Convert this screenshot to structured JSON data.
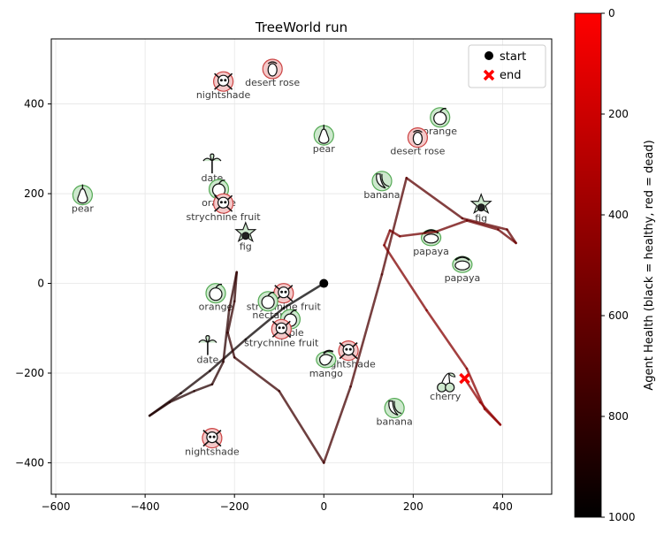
{
  "chart_data": {
    "type": "line",
    "title": "TreeWorld run",
    "xlim": [
      -610,
      510
    ],
    "ylim": [
      -470,
      545
    ],
    "x_ticks": [
      -600,
      -400,
      -200,
      0,
      200,
      400
    ],
    "y_ticks": [
      -400,
      -200,
      0,
      200,
      400
    ],
    "x_tick_labels": [
      "−600",
      "−400",
      "−200",
      "0",
      "200",
      "400"
    ],
    "y_tick_labels": [
      "−400",
      "−200",
      "0",
      "200",
      "400"
    ],
    "grid": true,
    "legend": {
      "placement": "upper right",
      "entries": [
        {
          "label": "start",
          "marker": "circle",
          "color": "#000000"
        },
        {
          "label": "end",
          "marker": "x",
          "color": "#ff0000"
        }
      ]
    },
    "colorbar": {
      "label": "Agent Health (black = healthy, red = dead)",
      "ticks": [
        0,
        200,
        400,
        600,
        800,
        1000
      ],
      "tick_labels": [
        "0",
        "200",
        "400",
        "600",
        "800",
        "1000"
      ],
      "range": [
        0,
        1000
      ],
      "low_color": "#ff0000",
      "high_color": "#000000"
    },
    "start": {
      "x": 0,
      "y": 0
    },
    "end": {
      "x": 315,
      "y": -212
    },
    "trajectory": [
      {
        "x": 0,
        "y": 0,
        "health": 1000
      },
      {
        "x": -90,
        "y": -55,
        "health": 985
      },
      {
        "x": -175,
        "y": -125,
        "health": 960
      },
      {
        "x": -255,
        "y": -195,
        "health": 935
      },
      {
        "x": -320,
        "y": -245,
        "health": 910
      },
      {
        "x": -390,
        "y": -295,
        "health": 890
      },
      {
        "x": -345,
        "y": -265,
        "health": 875
      },
      {
        "x": -290,
        "y": -240,
        "health": 862
      },
      {
        "x": -250,
        "y": -225,
        "health": 850
      },
      {
        "x": -225,
        "y": -175,
        "health": 838
      },
      {
        "x": -212,
        "y": -60,
        "health": 826
      },
      {
        "x": -195,
        "y": 25,
        "health": 815
      },
      {
        "x": -200,
        "y": -40,
        "health": 805
      },
      {
        "x": -215,
        "y": -110,
        "health": 795
      },
      {
        "x": -200,
        "y": -165,
        "health": 785
      },
      {
        "x": -100,
        "y": -240,
        "health": 770
      },
      {
        "x": 0,
        "y": -400,
        "health": 745
      },
      {
        "x": 60,
        "y": -230,
        "health": 720
      },
      {
        "x": 130,
        "y": 20,
        "health": 690
      },
      {
        "x": 185,
        "y": 235,
        "health": 660
      },
      {
        "x": 310,
        "y": 145,
        "health": 630
      },
      {
        "x": 410,
        "y": 120,
        "health": 610
      },
      {
        "x": 430,
        "y": 90,
        "health": 595
      },
      {
        "x": 390,
        "y": 120,
        "health": 585
      },
      {
        "x": 320,
        "y": 140,
        "health": 575
      },
      {
        "x": 250,
        "y": 115,
        "health": 560
      },
      {
        "x": 170,
        "y": 105,
        "health": 540
      },
      {
        "x": 148,
        "y": 118,
        "health": 525
      },
      {
        "x": 135,
        "y": 85,
        "health": 510
      },
      {
        "x": 230,
        "y": -60,
        "health": 490
      },
      {
        "x": 320,
        "y": -190,
        "health": 470
      },
      {
        "x": 360,
        "y": -280,
        "health": 455
      },
      {
        "x": 395,
        "y": -315,
        "health": 440
      },
      {
        "x": 350,
        "y": -265,
        "health": 430
      },
      {
        "x": 315,
        "y": -212,
        "health": 420
      }
    ],
    "items": [
      {
        "label": "nightshade",
        "x": -225,
        "y": 450,
        "icon": "skull-icon"
      },
      {
        "label": "desert rose",
        "x": -115,
        "y": 478,
        "icon": "desert-rose-icon"
      },
      {
        "label": "pear",
        "x": 0,
        "y": 330,
        "icon": "pear-icon"
      },
      {
        "label": "orange",
        "x": 260,
        "y": 370,
        "icon": "orange-icon"
      },
      {
        "label": "desert rose",
        "x": 210,
        "y": 325,
        "icon": "desert-rose-icon"
      },
      {
        "label": "date",
        "x": -250,
        "y": 265,
        "icon": "palm-icon"
      },
      {
        "label": "orange",
        "x": -235,
        "y": 210,
        "icon": "orange-icon"
      },
      {
        "label": "strychnine fruit",
        "x": -225,
        "y": 178,
        "icon": "skull-icon"
      },
      {
        "label": "pear",
        "x": -540,
        "y": 197,
        "icon": "pear-icon"
      },
      {
        "label": "banana",
        "x": 130,
        "y": 228,
        "icon": "banana-icon"
      },
      {
        "label": "fig",
        "x": 352,
        "y": 175,
        "icon": "fig-icon"
      },
      {
        "label": "fig",
        "x": -175,
        "y": 112,
        "icon": "fig-icon"
      },
      {
        "label": "papaya",
        "x": 240,
        "y": 102,
        "icon": "papaya-icon"
      },
      {
        "label": "papaya",
        "x": 310,
        "y": 42,
        "icon": "papaya-icon"
      },
      {
        "label": "orange",
        "x": -242,
        "y": -22,
        "icon": "orange-icon"
      },
      {
        "label": "strychnine fruit",
        "x": -90,
        "y": -22,
        "icon": "skull-icon"
      },
      {
        "label": "nectar",
        "x": -125,
        "y": -40,
        "icon": "orange-icon"
      },
      {
        "label": "apple",
        "x": -75,
        "y": -80,
        "icon": "apple-icon"
      },
      {
        "label": "strychnine fruit",
        "x": -95,
        "y": -102,
        "icon": "skull-icon"
      },
      {
        "label": "date",
        "x": -260,
        "y": -140,
        "icon": "palm-icon"
      },
      {
        "label": "nightshade",
        "x": 55,
        "y": -150,
        "icon": "skull-icon"
      },
      {
        "label": "mango",
        "x": 5,
        "y": -170,
        "icon": "mango-icon"
      },
      {
        "label": "cherry",
        "x": 272,
        "y": -222,
        "icon": "cherry-icon"
      },
      {
        "label": "banana",
        "x": 158,
        "y": -278,
        "icon": "banana-icon"
      },
      {
        "label": "nightshade",
        "x": -250,
        "y": -345,
        "icon": "skull-icon"
      }
    ]
  }
}
